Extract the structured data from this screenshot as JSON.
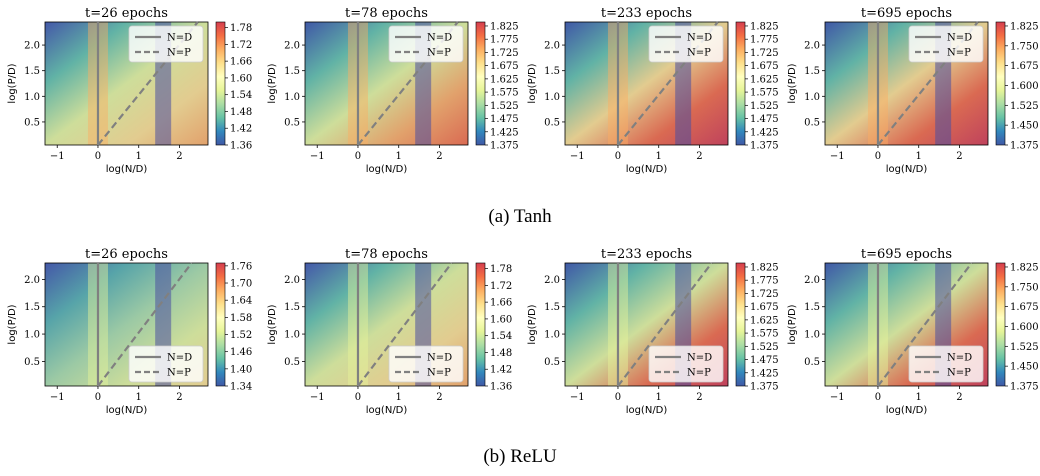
{
  "chart_data": [
    {
      "type": "heatmap",
      "row": "Tanh",
      "title": "t=26 epochs",
      "xlabel": "log(N/D)",
      "ylabel": "log(P/D)",
      "xticks": [
        "−1",
        "0",
        "1",
        "2"
      ],
      "yticks": [
        "0.5",
        "1.0",
        "1.5",
        "2.0"
      ],
      "xlim": [
        -1.3,
        2.7
      ],
      "ylim": [
        0.05,
        2.45
      ],
      "colorbar": {
        "ticks": [
          "1.78",
          "1.72",
          "1.66",
          "1.60",
          "1.54",
          "1.48",
          "1.42",
          "1.36"
        ],
        "range": [
          1.36,
          1.8
        ]
      },
      "legend": [
        "N=D",
        "N=P"
      ],
      "legend_position": "upper right",
      "gradient": {
        "cmap": "Spectral_r",
        "direction": "diagonal",
        "stops": [
          "#4458a8",
          "#66c2a5",
          "#e6f598",
          "#fee08b",
          "#fdae61"
        ]
      }
    },
    {
      "type": "heatmap",
      "row": "Tanh",
      "title": "t=78 epochs",
      "xlabel": "log(N/D)",
      "ylabel": "log(P/D)",
      "xticks": [
        "−1",
        "0",
        "1",
        "2"
      ],
      "yticks": [
        "0.5",
        "1.0",
        "1.5",
        "2.0"
      ],
      "xlim": [
        -1.3,
        2.7
      ],
      "ylim": [
        0.05,
        2.45
      ],
      "colorbar": {
        "ticks": [
          "1.825",
          "1.775",
          "1.725",
          "1.675",
          "1.625",
          "1.575",
          "1.525",
          "1.475",
          "1.425",
          "1.375"
        ],
        "range": [
          1.375,
          1.84
        ]
      },
      "legend": [
        "N=D",
        "N=P"
      ],
      "legend_position": "upper right",
      "gradient": {
        "cmap": "Spectral_r",
        "direction": "diagonal",
        "stops": [
          "#3f58a6",
          "#66c2a5",
          "#e6f598",
          "#fdae61",
          "#f46d43"
        ]
      }
    },
    {
      "type": "heatmap",
      "row": "Tanh",
      "title": "t=233 epochs",
      "xlabel": "log(N/D)",
      "ylabel": "log(P/D)",
      "xticks": [
        "−1",
        "0",
        "1",
        "2"
      ],
      "yticks": [
        "0.5",
        "1.0",
        "1.5",
        "2.0"
      ],
      "xlim": [
        -1.3,
        2.7
      ],
      "ylim": [
        0.05,
        2.45
      ],
      "colorbar": {
        "ticks": [
          "1.825",
          "1.775",
          "1.725",
          "1.675",
          "1.625",
          "1.575",
          "1.525",
          "1.475",
          "1.425",
          "1.375"
        ],
        "range": [
          1.375,
          1.84
        ]
      },
      "legend": [
        "N=D",
        "N=P"
      ],
      "legend_position": "upper right",
      "gradient": {
        "cmap": "Spectral_r",
        "direction": "diagonal",
        "stops": [
          "#3f58a6",
          "#66c2a5",
          "#fee08b",
          "#f46d43",
          "#d53e4f"
        ]
      }
    },
    {
      "type": "heatmap",
      "row": "Tanh",
      "title": "t=695 epochs",
      "xlabel": "log(N/D)",
      "ylabel": "log(P/D)",
      "xticks": [
        "−1",
        "0",
        "1",
        "2"
      ],
      "yticks": [
        "0.5",
        "1.0",
        "1.5",
        "2.0"
      ],
      "xlim": [
        -1.3,
        2.7
      ],
      "ylim": [
        0.05,
        2.45
      ],
      "colorbar": {
        "ticks": [
          "1.825",
          "1.750",
          "1.675",
          "1.600",
          "1.525",
          "1.450",
          "1.375"
        ],
        "range": [
          1.375,
          1.84
        ]
      },
      "legend": [
        "N=D",
        "N=P"
      ],
      "legend_position": "upper right",
      "gradient": {
        "cmap": "Spectral_r",
        "direction": "diagonal",
        "stops": [
          "#3f58a6",
          "#66c2a5",
          "#fee08b",
          "#f46d43",
          "#d53e4f"
        ]
      }
    },
    {
      "type": "heatmap",
      "row": "ReLU",
      "title": "t=26 epochs",
      "xlabel": "log(N/D)",
      "ylabel": "log(P/D)",
      "xticks": [
        "−1",
        "0",
        "1",
        "2"
      ],
      "yticks": [
        "0.5",
        "1.0",
        "1.5",
        "2.0"
      ],
      "xlim": [
        -1.3,
        2.7
      ],
      "ylim": [
        0.05,
        2.3
      ],
      "colorbar": {
        "ticks": [
          "1.76",
          "1.70",
          "1.64",
          "1.58",
          "1.52",
          "1.46",
          "1.40",
          "1.34"
        ],
        "range": [
          1.34,
          1.77
        ]
      },
      "legend": [
        "N=D",
        "N=P"
      ],
      "legend_position": "lower right",
      "gradient": {
        "cmap": "Spectral_r",
        "direction": "diagonal",
        "stops": [
          "#4458a8",
          "#5ab1a9",
          "#abdda4",
          "#e6f598",
          "#fee08b"
        ]
      }
    },
    {
      "type": "heatmap",
      "row": "ReLU",
      "title": "t=78 epochs",
      "xlabel": "log(N/D)",
      "ylabel": "log(P/D)",
      "xticks": [
        "−1",
        "0",
        "1",
        "2"
      ],
      "yticks": [
        "0.5",
        "1.0",
        "1.5",
        "2.0"
      ],
      "xlim": [
        -1.3,
        2.7
      ],
      "ylim": [
        0.05,
        2.3
      ],
      "colorbar": {
        "ticks": [
          "1.78",
          "1.72",
          "1.66",
          "1.60",
          "1.54",
          "1.48",
          "1.42",
          "1.36"
        ],
        "range": [
          1.36,
          1.8
        ]
      },
      "legend": [
        "N=D",
        "N=P"
      ],
      "legend_position": "lower right",
      "gradient": {
        "cmap": "Spectral_r",
        "direction": "diagonal",
        "stops": [
          "#4458a8",
          "#66c2a5",
          "#e6f598",
          "#fee08b",
          "#fdae61"
        ]
      }
    },
    {
      "type": "heatmap",
      "row": "ReLU",
      "title": "t=233 epochs",
      "xlabel": "log(N/D)",
      "ylabel": "log(P/D)",
      "xticks": [
        "−1",
        "0",
        "1",
        "2"
      ],
      "yticks": [
        "0.5",
        "1.0",
        "1.5",
        "2.0"
      ],
      "xlim": [
        -1.3,
        2.7
      ],
      "ylim": [
        0.05,
        2.3
      ],
      "colorbar": {
        "ticks": [
          "1.825",
          "1.775",
          "1.725",
          "1.675",
          "1.625",
          "1.575",
          "1.525",
          "1.475",
          "1.425",
          "1.375"
        ],
        "range": [
          1.375,
          1.84
        ]
      },
      "legend": [
        "N=D",
        "N=P"
      ],
      "legend_position": "lower right",
      "gradient": {
        "cmap": "Spectral_r",
        "direction": "diagonal",
        "stops": [
          "#3f58a6",
          "#66c2a5",
          "#e6f598",
          "#f46d43",
          "#d53e4f"
        ]
      }
    },
    {
      "type": "heatmap",
      "row": "ReLU",
      "title": "t=695 epochs",
      "xlabel": "log(N/D)",
      "ylabel": "log(P/D)",
      "xticks": [
        "−1",
        "0",
        "1",
        "2"
      ],
      "yticks": [
        "0.5",
        "1.0",
        "1.5",
        "2.0"
      ],
      "xlim": [
        -1.3,
        2.7
      ],
      "ylim": [
        0.05,
        2.3
      ],
      "colorbar": {
        "ticks": [
          "1.825",
          "1.750",
          "1.675",
          "1.600",
          "1.525",
          "1.450",
          "1.375"
        ],
        "range": [
          1.375,
          1.84
        ]
      },
      "legend": [
        "N=D",
        "N=P"
      ],
      "legend_position": "lower right",
      "gradient": {
        "cmap": "Spectral_r",
        "direction": "diagonal",
        "stops": [
          "#3f58a6",
          "#66c2a5",
          "#e6f598",
          "#f46d43",
          "#d53e4f"
        ]
      }
    }
  ],
  "captions": {
    "a": "(a) Tanh",
    "b": "(b) ReLU"
  },
  "colors": {
    "reference_line": "#808080",
    "colorbar_stops": [
      "#3f58a6",
      "#3288bd",
      "#66c2a5",
      "#abdda4",
      "#e6f598",
      "#ffffbf",
      "#fee08b",
      "#fdae61",
      "#f46d43",
      "#d53e4f"
    ]
  }
}
